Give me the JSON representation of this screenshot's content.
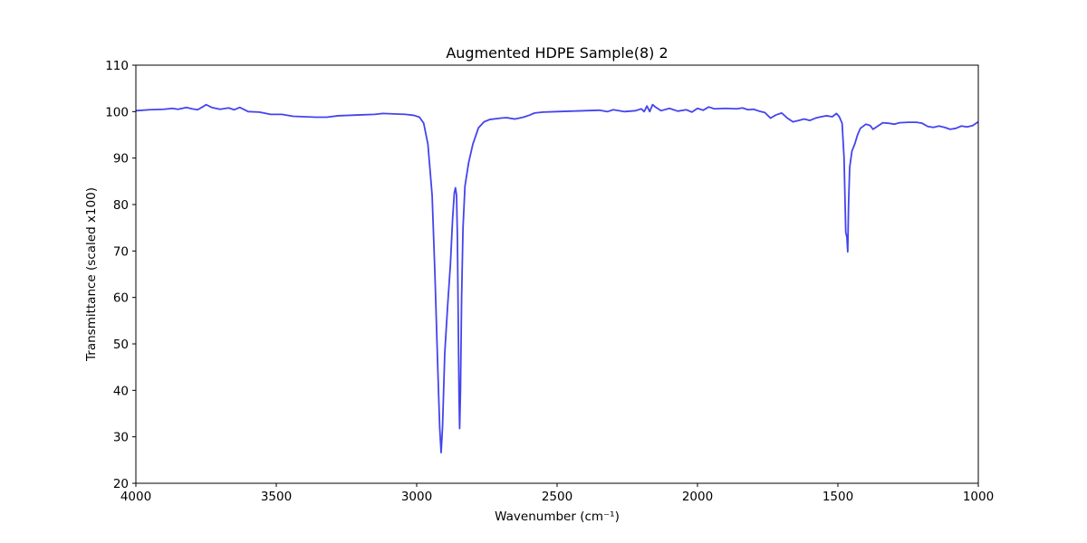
{
  "chart_data": {
    "type": "line",
    "title": "Augmented HDPE Sample(8) 2",
    "xlabel": "Wavenumber (cm⁻¹)",
    "ylabel": "Transmittance (scaled x100)",
    "xlim": [
      4000,
      1000
    ],
    "ylim": [
      20,
      110
    ],
    "x_reversed": true,
    "grid": false,
    "legend": "none",
    "xticks": [
      4000,
      3500,
      3000,
      2500,
      2000,
      1500,
      1000
    ],
    "yticks": [
      20,
      30,
      40,
      50,
      60,
      70,
      80,
      90,
      100,
      110
    ],
    "series": [
      {
        "color": "#4444ee",
        "points": [
          [
            4000,
            100.2
          ],
          [
            3950,
            100.4
          ],
          [
            3900,
            100.5
          ],
          [
            3870,
            100.7
          ],
          [
            3850,
            100.5
          ],
          [
            3820,
            100.9
          ],
          [
            3800,
            100.6
          ],
          [
            3780,
            100.4
          ],
          [
            3760,
            101.1
          ],
          [
            3750,
            101.5
          ],
          [
            3730,
            100.9
          ],
          [
            3700,
            100.5
          ],
          [
            3670,
            100.8
          ],
          [
            3650,
            100.4
          ],
          [
            3630,
            100.9
          ],
          [
            3600,
            100.0
          ],
          [
            3560,
            99.9
          ],
          [
            3520,
            99.4
          ],
          [
            3480,
            99.4
          ],
          [
            3440,
            99.0
          ],
          [
            3400,
            98.9
          ],
          [
            3360,
            98.8
          ],
          [
            3320,
            98.8
          ],
          [
            3280,
            99.1
          ],
          [
            3240,
            99.2
          ],
          [
            3200,
            99.3
          ],
          [
            3150,
            99.4
          ],
          [
            3120,
            99.6
          ],
          [
            3080,
            99.5
          ],
          [
            3040,
            99.4
          ],
          [
            3010,
            99.2
          ],
          [
            2990,
            98.8
          ],
          [
            2975,
            97.5
          ],
          [
            2960,
            93.0
          ],
          [
            2945,
            82.0
          ],
          [
            2935,
            65.0
          ],
          [
            2925,
            45.0
          ],
          [
            2918,
            32.0
          ],
          [
            2913,
            26.6
          ],
          [
            2908,
            32.0
          ],
          [
            2900,
            48.0
          ],
          [
            2890,
            58.0
          ],
          [
            2880,
            67.0
          ],
          [
            2872,
            77.0
          ],
          [
            2866,
            82.5
          ],
          [
            2862,
            83.6
          ],
          [
            2858,
            82.0
          ],
          [
            2855,
            73.0
          ],
          [
            2852,
            55.0
          ],
          [
            2849,
            38.0
          ],
          [
            2847,
            31.8
          ],
          [
            2844,
            40.0
          ],
          [
            2840,
            60.0
          ],
          [
            2835,
            75.0
          ],
          [
            2828,
            84.0
          ],
          [
            2815,
            89.0
          ],
          [
            2800,
            93.0
          ],
          [
            2780,
            96.5
          ],
          [
            2760,
            97.8
          ],
          [
            2740,
            98.3
          ],
          [
            2700,
            98.6
          ],
          [
            2680,
            98.7
          ],
          [
            2650,
            98.4
          ],
          [
            2620,
            98.8
          ],
          [
            2600,
            99.2
          ],
          [
            2580,
            99.7
          ],
          [
            2550,
            99.9
          ],
          [
            2500,
            100.0
          ],
          [
            2450,
            100.1
          ],
          [
            2400,
            100.2
          ],
          [
            2350,
            100.3
          ],
          [
            2320,
            100.0
          ],
          [
            2300,
            100.4
          ],
          [
            2260,
            100.0
          ],
          [
            2220,
            100.2
          ],
          [
            2200,
            100.6
          ],
          [
            2190,
            100.0
          ],
          [
            2180,
            101.2
          ],
          [
            2170,
            100.0
          ],
          [
            2160,
            101.5
          ],
          [
            2150,
            101.0
          ],
          [
            2130,
            100.2
          ],
          [
            2100,
            100.7
          ],
          [
            2070,
            100.1
          ],
          [
            2040,
            100.4
          ],
          [
            2020,
            99.9
          ],
          [
            2000,
            100.7
          ],
          [
            1980,
            100.3
          ],
          [
            1960,
            101.0
          ],
          [
            1940,
            100.6
          ],
          [
            1900,
            100.7
          ],
          [
            1860,
            100.6
          ],
          [
            1840,
            100.8
          ],
          [
            1820,
            100.4
          ],
          [
            1800,
            100.5
          ],
          [
            1780,
            100.1
          ],
          [
            1760,
            99.8
          ],
          [
            1740,
            98.6
          ],
          [
            1720,
            99.3
          ],
          [
            1700,
            99.7
          ],
          [
            1680,
            98.6
          ],
          [
            1660,
            97.8
          ],
          [
            1640,
            98.1
          ],
          [
            1620,
            98.4
          ],
          [
            1600,
            98.1
          ],
          [
            1580,
            98.6
          ],
          [
            1560,
            98.9
          ],
          [
            1540,
            99.1
          ],
          [
            1520,
            98.9
          ],
          [
            1505,
            99.6
          ],
          [
            1495,
            98.9
          ],
          [
            1485,
            97.5
          ],
          [
            1478,
            90.0
          ],
          [
            1472,
            74.0
          ],
          [
            1468,
            73.0
          ],
          [
            1465,
            69.8
          ],
          [
            1462,
            80.0
          ],
          [
            1458,
            88.0
          ],
          [
            1450,
            91.5
          ],
          [
            1440,
            93.0
          ],
          [
            1430,
            95.0
          ],
          [
            1420,
            96.4
          ],
          [
            1400,
            97.3
          ],
          [
            1385,
            97.0
          ],
          [
            1375,
            96.2
          ],
          [
            1360,
            96.8
          ],
          [
            1340,
            97.6
          ],
          [
            1320,
            97.5
          ],
          [
            1300,
            97.3
          ],
          [
            1280,
            97.6
          ],
          [
            1250,
            97.7
          ],
          [
            1220,
            97.7
          ],
          [
            1200,
            97.5
          ],
          [
            1180,
            96.8
          ],
          [
            1160,
            96.6
          ],
          [
            1140,
            96.9
          ],
          [
            1120,
            96.6
          ],
          [
            1100,
            96.2
          ],
          [
            1080,
            96.4
          ],
          [
            1060,
            96.9
          ],
          [
            1040,
            96.7
          ],
          [
            1020,
            97.0
          ],
          [
            1000,
            97.8
          ]
        ]
      }
    ]
  }
}
